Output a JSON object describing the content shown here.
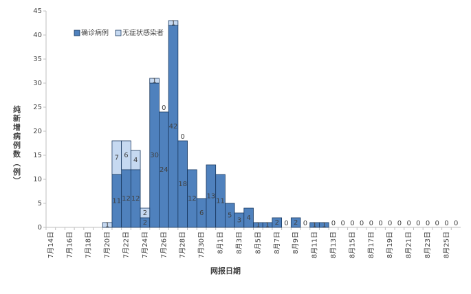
{
  "chart_data": {
    "type": "stacked-bar",
    "y_label": "纯新增病例数（例）",
    "x_label": "网报日期",
    "categories": [
      "7月14日",
      null,
      "7月16日",
      null,
      "7月18日",
      null,
      "7月20日",
      null,
      "7月22日",
      null,
      "7月24日",
      null,
      "7月26日",
      null,
      "7月28日",
      null,
      "7月30日",
      null,
      "8月1日",
      null,
      "8月3日",
      null,
      "8月5日",
      null,
      "8月7日",
      null,
      "8月9日",
      null,
      "8月11日",
      null,
      "8月13日",
      null,
      "8月15日",
      null,
      "8月17日",
      null,
      "8月19日",
      null,
      "8月21日",
      null,
      "8月23日",
      null,
      "8月25日",
      null
    ],
    "series": [
      {
        "name": "确诊病例",
        "color": "#4f81bd",
        "values": [
          null,
          null,
          null,
          null,
          null,
          null,
          null,
          11,
          12,
          12,
          2,
          30,
          24,
          42,
          18,
          12,
          6,
          13,
          11,
          5,
          3,
          4,
          1,
          1,
          2,
          0,
          2,
          0,
          1,
          1,
          0,
          0,
          0,
          0,
          0,
          0,
          0,
          0,
          0,
          0,
          0,
          0,
          0,
          0
        ]
      },
      {
        "name": "无症状感染者",
        "color": "#c6d9f1",
        "values": [
          null,
          null,
          null,
          null,
          null,
          null,
          1,
          7,
          6,
          4,
          2,
          1,
          0,
          1,
          0,
          null,
          null,
          null,
          null,
          null,
          null,
          null,
          null,
          null,
          null,
          null,
          null,
          null,
          null,
          null,
          null,
          null,
          null,
          null,
          null,
          null,
          null,
          null,
          null,
          null,
          null,
          null,
          null,
          null
        ]
      }
    ],
    "ylim": [
      0,
      45
    ],
    "yticks": [
      0,
      5,
      10,
      15,
      20,
      25,
      30,
      35,
      40,
      45
    ],
    "legend": "top-left"
  }
}
